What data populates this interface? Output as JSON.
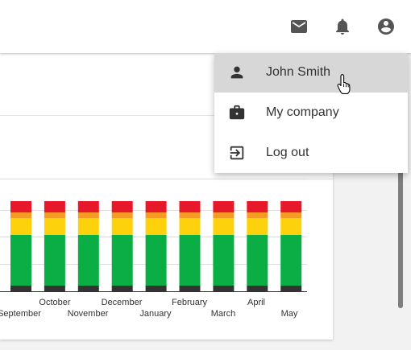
{
  "header": {
    "icons": [
      "mail-icon",
      "notifications-icon",
      "account-circle-icon"
    ]
  },
  "user_menu": {
    "items": [
      {
        "label": "John Smith",
        "icon": "person-icon"
      },
      {
        "label": "My company",
        "icon": "briefcase-icon"
      },
      {
        "label": "Log out",
        "icon": "logout-icon"
      }
    ]
  },
  "colors": {
    "dark": "#333333",
    "green": "#0aae44",
    "yellow": "#fdd20c",
    "orange": "#f59a23",
    "red": "#e8182b"
  },
  "chart_data": {
    "type": "bar",
    "stacked": true,
    "categories": [
      "September",
      "October",
      "November",
      "December",
      "January",
      "February",
      "March",
      "April",
      "May"
    ],
    "tick_labels_row1": [
      "October",
      "December",
      "February",
      "April"
    ],
    "tick_labels_row2": [
      "September",
      "November",
      "January",
      "March",
      "May"
    ],
    "series": [
      {
        "color": "#333333",
        "values": [
          2,
          2,
          2,
          2,
          2,
          2,
          2,
          2,
          2
        ]
      },
      {
        "color": "#0aae44",
        "values": [
          18,
          18,
          18,
          18,
          18,
          18,
          18,
          18,
          18
        ]
      },
      {
        "color": "#fdd20c",
        "values": [
          6,
          6,
          6,
          6,
          6,
          6,
          6,
          6,
          6
        ]
      },
      {
        "color": "#f59a23",
        "values": [
          2,
          2,
          2,
          2,
          2,
          2,
          2,
          2,
          2
        ]
      },
      {
        "color": "#e8182b",
        "values": [
          4,
          4,
          4,
          4,
          4,
          4,
          4,
          4,
          4
        ]
      }
    ],
    "ylim": [
      0,
      40
    ],
    "grid": true
  }
}
